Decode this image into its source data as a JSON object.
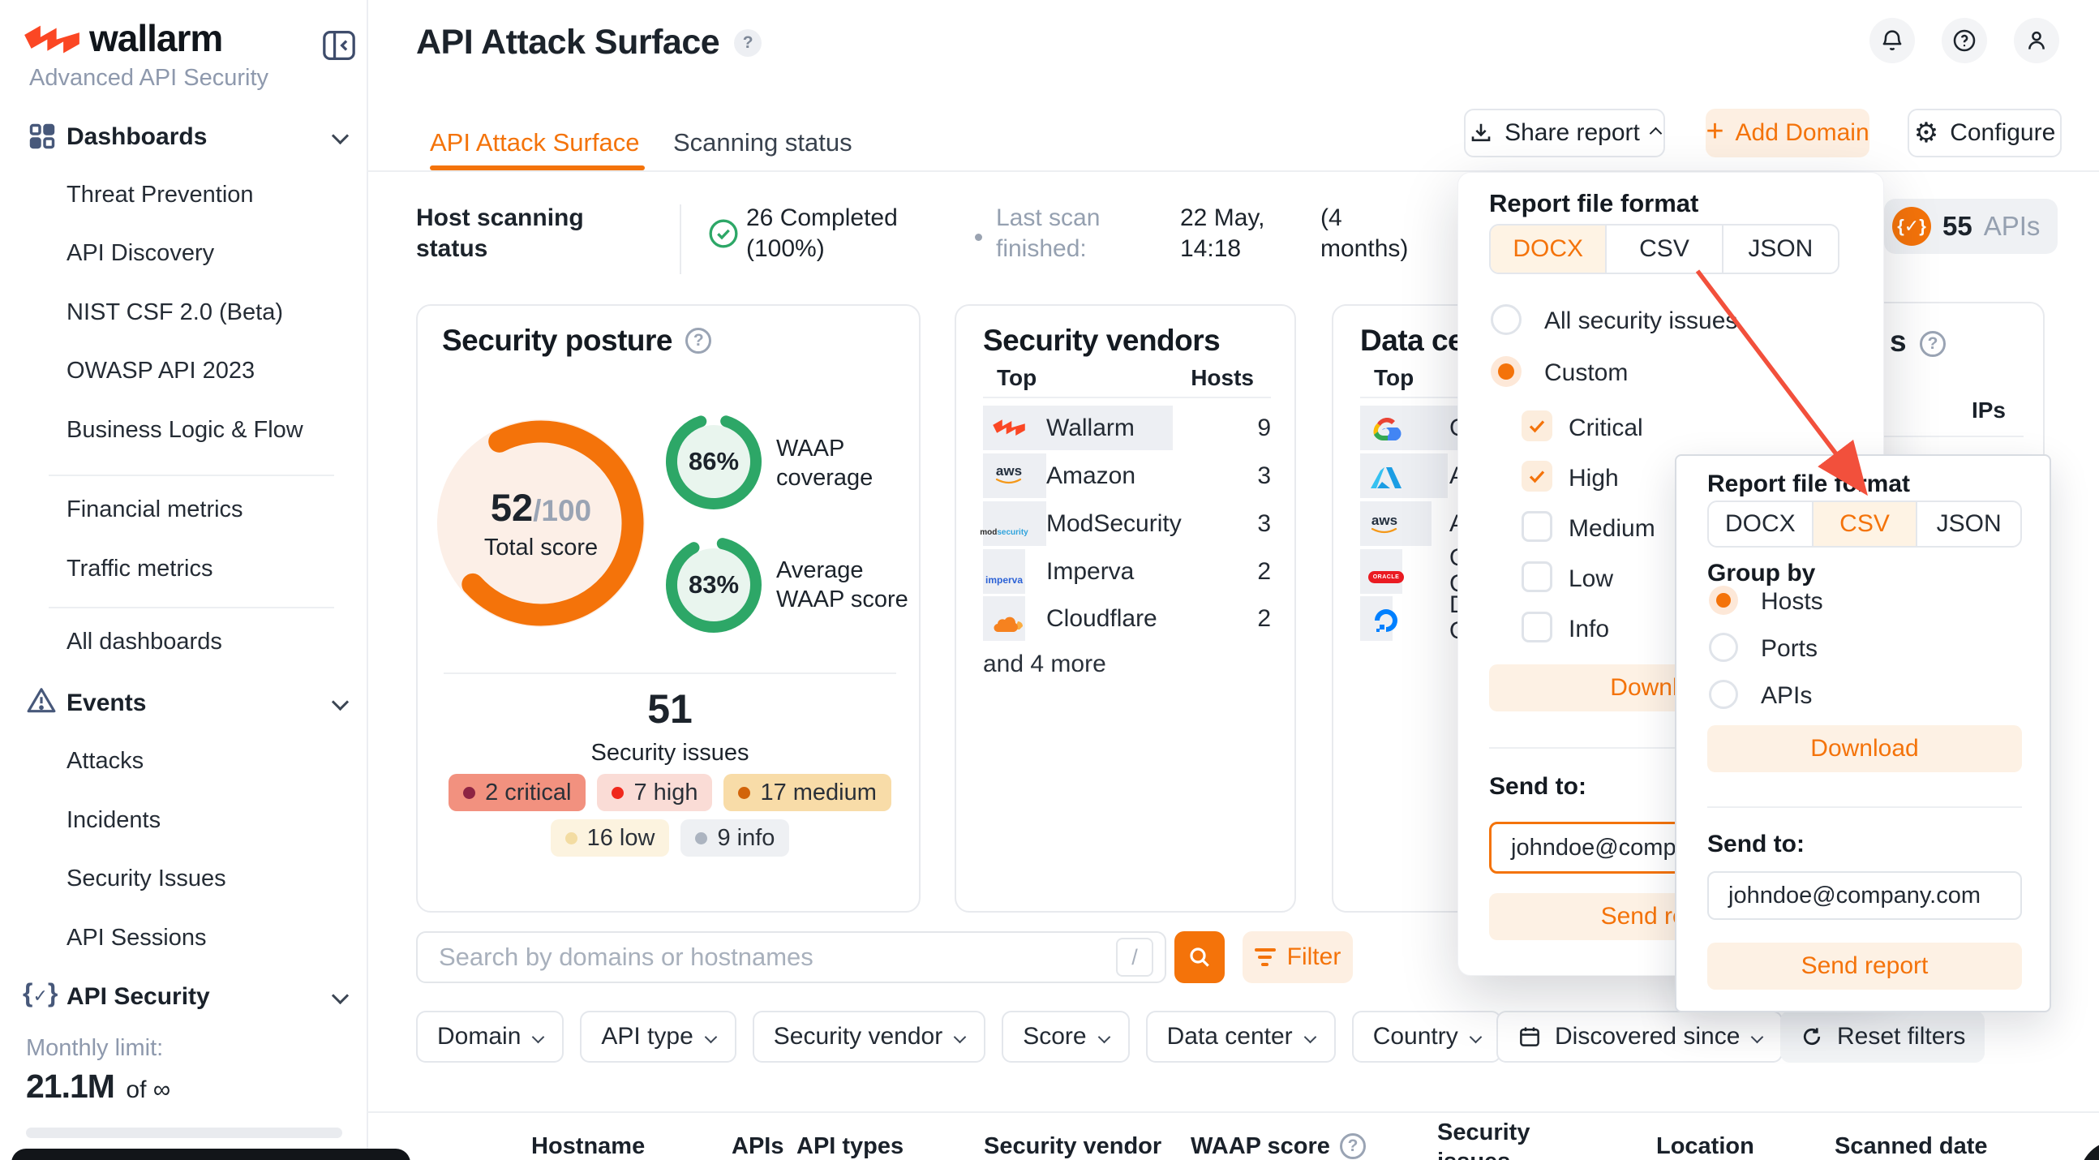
{
  "colors": {
    "accent": "#F4730A",
    "accent_soft": "#FDF1E4",
    "brand": "#FB4724",
    "green": "#2DA767",
    "arrow": "#F2503C",
    "chip_critical_bg": "#F2917F",
    "chip_high_bg": "#FADCD6",
    "chip_medium_bg": "#F8DCA8",
    "chip_low_bg": "#FCF3DF",
    "chip_info_bg": "#EEF0F3"
  },
  "sidebar": {
    "brand": "wallarm",
    "tagline": "Advanced API Security",
    "dashboards_label": "Dashboards",
    "dash_items": [
      "Threat Prevention",
      "API Discovery",
      "NIST CSF 2.0 (Beta)",
      "OWASP API 2023",
      "Business Logic & Flow"
    ],
    "dash_items2": [
      "Financial metrics",
      "Traffic metrics"
    ],
    "dash_items3": [
      "All dashboards"
    ],
    "events_label": "Events",
    "events_items": [
      "Attacks",
      "Incidents",
      "Security Issues",
      "API Sessions"
    ],
    "api_security_label": "API Security",
    "monthly_label": "Monthly limit:",
    "monthly_value": "21.1M",
    "monthly_suffix": "of ∞"
  },
  "header": {
    "title": "API Attack Surface",
    "tab1": "API Attack Surface",
    "tab2": "Scanning status",
    "share": "Share report",
    "add_domain": "Add Domain",
    "configure": "Configure"
  },
  "status": {
    "label": "Host scanning status",
    "completed": "26 Completed (100%)",
    "last_label": "Last scan finished:",
    "last_value": "22 May, 14:18",
    "last_ago": "(4 months)",
    "apis_count": "55",
    "apis_label": "APIs"
  },
  "posture": {
    "title": "Security posture",
    "score": "52",
    "denom": "/100",
    "caption": "Total score",
    "ring1_value": "86%",
    "ring1_label": "WAAP coverage",
    "ring2_value": "83%",
    "ring2_label": "Average WAAP score",
    "issues_total": "51",
    "issues_caption": "Security issues",
    "chips": [
      {
        "label": "2 critical"
      },
      {
        "label": "7 high"
      },
      {
        "label": "17 medium"
      },
      {
        "label": "16 low"
      },
      {
        "label": "9 info"
      }
    ]
  },
  "vendors": {
    "title": "Security vendors",
    "col_top": "Top",
    "col_hosts": "Hosts",
    "rows": [
      {
        "name": "Wallarm",
        "hosts": "9"
      },
      {
        "name": "Amazon",
        "hosts": "3"
      },
      {
        "name": "ModSecurity",
        "hosts": "3"
      },
      {
        "name": "Imperva",
        "hosts": "2"
      },
      {
        "name": "Cloudflare",
        "hosts": "2"
      }
    ],
    "more": "and 4 more"
  },
  "datacenters": {
    "title": "Data centers",
    "col_top": "Top",
    "rows": [
      {
        "name": "GCP",
        "bar_px": "158"
      },
      {
        "name": "Azure",
        "bar_px": "108"
      },
      {
        "name": "AWS",
        "bar_px": "88"
      },
      {
        "name": "Oracle Cloud",
        "bar_px": "52"
      },
      {
        "name": "DigitalOcean",
        "bar_px": "40"
      }
    ]
  },
  "card4": {
    "title_visible": "s",
    "col_ips": "IPs"
  },
  "search": {
    "placeholder": "Search by domains or hostnames",
    "key_hint": "/",
    "filter": "Filter"
  },
  "filters": {
    "chips": [
      "Domain",
      "API type",
      "Security vendor",
      "Score",
      "Data center",
      "Country"
    ],
    "discovered": "Discovered since",
    "reset": "Reset filters"
  },
  "table": {
    "columns": [
      "Hostname",
      "APIs",
      "API types",
      "Security vendor",
      "WAAP score",
      "Security issues",
      "Location",
      "Scanned date"
    ]
  },
  "popup1": {
    "title": "Report file format",
    "formats": [
      "DOCX",
      "CSV",
      "JSON"
    ],
    "radio_all": "All security issues",
    "radio_custom": "Custom",
    "severities": [
      {
        "label": "Critical",
        "checked": true
      },
      {
        "label": "High",
        "checked": true
      },
      {
        "label": "Medium",
        "checked": false
      },
      {
        "label": "Low",
        "checked": false
      },
      {
        "label": "Info",
        "checked": false
      }
    ],
    "download": "Download",
    "send_to": "Send to:",
    "email": "johndoe@company.com",
    "send": "Send report"
  },
  "popup2": {
    "title": "Report file format",
    "formats": [
      "DOCX",
      "CSV",
      "JSON"
    ],
    "group_label": "Group by",
    "groups": [
      "Hosts",
      "Ports",
      "APIs"
    ],
    "download": "Download",
    "send_to": "Send to:",
    "email": "johndoe@company.com",
    "send": "Send report"
  }
}
